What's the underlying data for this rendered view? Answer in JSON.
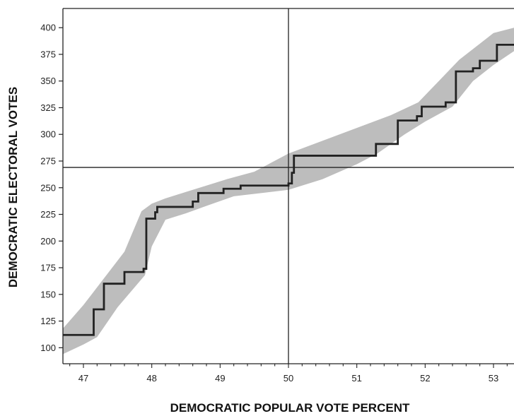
{
  "chart_data": {
    "type": "line",
    "title": "",
    "xlabel": "DEMOCRATIC POPULAR VOTE PERCENT",
    "ylabel": "DEMOCRATIC ELECTORAL VOTES",
    "xlim": [
      46.7,
      53.3
    ],
    "ylim": [
      85,
      418
    ],
    "xticks": [
      47,
      48,
      49,
      50,
      51,
      52,
      53
    ],
    "yticks": [
      100,
      125,
      150,
      175,
      200,
      225,
      250,
      275,
      300,
      325,
      350,
      375,
      400
    ],
    "reference_lines": {
      "x": 50,
      "y": 269
    },
    "colors": {
      "band": "#bdbdbd",
      "line": "#222222",
      "axes": "#222222"
    },
    "series": [
      {
        "role": "step-line",
        "x": [
          46.7,
          47.15,
          47.15,
          47.3,
          47.3,
          47.6,
          47.6,
          47.88,
          47.88,
          47.92,
          47.92,
          48.05,
          48.05,
          48.08,
          48.08,
          48.6,
          48.6,
          48.68,
          48.68,
          49.05,
          49.05,
          49.3,
          49.3,
          50.0,
          50.0,
          50.05,
          50.05,
          50.08,
          50.08,
          51.28,
          51.28,
          51.6,
          51.6,
          51.88,
          51.88,
          51.95,
          51.95,
          52.3,
          52.3,
          52.45,
          52.45,
          52.7,
          52.7,
          52.8,
          52.8,
          53.05,
          53.05,
          53.3
        ],
        "y": [
          112,
          112,
          136,
          136,
          160,
          160,
          171,
          171,
          174,
          174,
          221,
          221,
          227,
          227,
          232,
          232,
          237,
          237,
          245,
          245,
          249,
          249,
          252,
          252,
          254,
          254,
          264,
          264,
          280,
          280,
          291,
          291,
          313,
          313,
          317,
          317,
          326,
          326,
          330,
          330,
          359,
          359,
          362,
          362,
          369,
          369,
          384,
          384
        ]
      },
      {
        "role": "band-upper",
        "x": [
          46.7,
          47.0,
          47.3,
          47.6,
          47.85,
          48.0,
          48.2,
          48.5,
          48.8,
          49.1,
          49.5,
          50.0,
          50.5,
          51.0,
          51.5,
          51.9,
          52.2,
          52.5,
          52.8,
          53.0,
          53.3
        ],
        "y": [
          118,
          140,
          165,
          190,
          228,
          235,
          240,
          246,
          252,
          258,
          265,
          282,
          294,
          306,
          318,
          330,
          350,
          370,
          385,
          395,
          400
        ]
      },
      {
        "role": "band-lower",
        "x": [
          46.7,
          47.0,
          47.2,
          47.5,
          47.9,
          48.0,
          48.2,
          48.5,
          48.8,
          49.2,
          49.6,
          50.0,
          50.5,
          51.0,
          51.3,
          51.7,
          52.0,
          52.4,
          52.7,
          53.0,
          53.3
        ],
        "y": [
          94,
          103,
          110,
          138,
          168,
          195,
          220,
          226,
          233,
          242,
          245,
          248,
          258,
          272,
          282,
          300,
          312,
          326,
          350,
          365,
          378
        ]
      }
    ]
  }
}
